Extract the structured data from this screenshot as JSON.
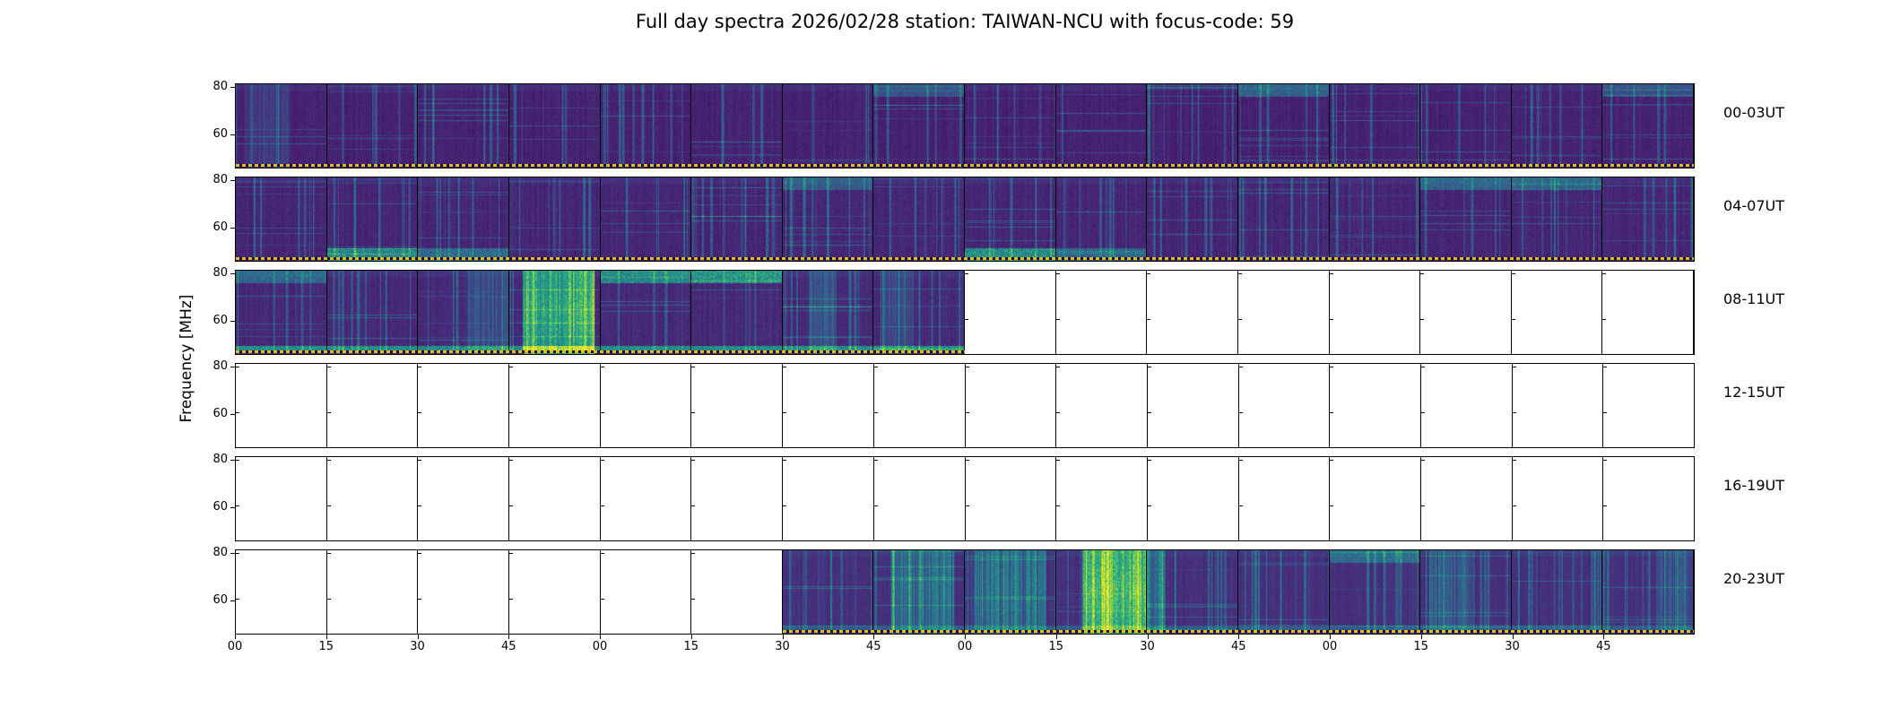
{
  "chart_data": {
    "type": "heatmap",
    "title": "Full day spectra 2026/02/28 station: TAIWAN-NCU with focus-code: 59",
    "ylabel": "Frequency [MHz]",
    "colormap": "viridis",
    "grid": "16 panels per row, 6 rows, each panel = 15 minutes of dynamic radio spectrum",
    "y_tick_labels": [
      "80",
      "60"
    ],
    "x_tick_labels": [
      "00",
      "15",
      "30",
      "45",
      "00",
      "15",
      "30",
      "45",
      "00",
      "15",
      "30",
      "45",
      "00",
      "15",
      "30",
      "45"
    ],
    "panels_per_row": 16,
    "minutes_per_panel": 15,
    "colors": {
      "spectrogram_dark": "#440154",
      "spectrogram_mid": "#21918c",
      "spectrogram_bright": "#fde725",
      "time_marker": "#e8b90f",
      "frame": "#000000",
      "empty_panel": "#ffffff"
    },
    "rows": [
      {
        "label": "00-03UT",
        "filled_start": 0,
        "filled_end": 15,
        "texture": {
          "base": 0.02,
          "streak_prob": 0.05,
          "bottom_line": 0
        },
        "features": [
          {
            "panel": 0,
            "type": "burst",
            "amp": 0.18,
            "x0": 0.1,
            "x1": 0.6
          },
          {
            "panel": 7,
            "type": "top-glow",
            "amp": 0.22
          },
          {
            "panel": 11,
            "type": "top-glow",
            "amp": 0.3
          },
          {
            "panel": 15,
            "type": "top-glow",
            "amp": 0.2
          }
        ]
      },
      {
        "label": "04-07UT",
        "filled_start": 0,
        "filled_end": 15,
        "texture": {
          "base": 0.03,
          "streak_prob": 0.08,
          "bottom_line": 0
        },
        "features": [
          {
            "panel": 1,
            "type": "bottom-glow",
            "amp": 0.5
          },
          {
            "panel": 2,
            "type": "bottom-glow",
            "amp": 0.35
          },
          {
            "panel": 6,
            "type": "top-glow",
            "amp": 0.25
          },
          {
            "panel": 8,
            "type": "bottom-glow",
            "amp": 0.55
          },
          {
            "panel": 9,
            "type": "bottom-glow",
            "amp": 0.3
          },
          {
            "panel": 13,
            "type": "top-glow",
            "amp": 0.3
          },
          {
            "panel": 14,
            "type": "top-glow",
            "amp": 0.3
          }
        ]
      },
      {
        "label": "08-11UT",
        "filled_start": 0,
        "filled_end": 7,
        "texture": {
          "base": 0.04,
          "streak_prob": 0.07,
          "bottom_line": 0.5
        },
        "features": [
          {
            "panel": 0,
            "type": "top-glow",
            "amp": 0.3
          },
          {
            "panel": 2,
            "type": "burst",
            "amp": 0.3,
            "x0": 0.55,
            "x1": 1.0
          },
          {
            "panel": 3,
            "type": "strong-burst",
            "amp": 0.8,
            "x0": 0.15,
            "x1": 0.95
          },
          {
            "panel": 4,
            "type": "top-glow",
            "amp": 0.5
          },
          {
            "panel": 5,
            "type": "top-glow",
            "amp": 0.55
          },
          {
            "panel": 6,
            "type": "burst",
            "amp": 0.3,
            "x0": 0.3,
            "x1": 0.6
          },
          {
            "panel": 7,
            "type": "burst",
            "amp": 0.25,
            "x0": 0.1,
            "x1": 0.45
          }
        ]
      },
      {
        "label": "12-15UT",
        "filled_start": -1,
        "filled_end": -1,
        "texture": null,
        "features": []
      },
      {
        "label": "16-19UT",
        "filled_start": -1,
        "filled_end": -1,
        "texture": null,
        "features": []
      },
      {
        "label": "20-23UT",
        "filled_start": 6,
        "filled_end": 15,
        "texture": {
          "base": 0.06,
          "streak_prob": 0.12,
          "bottom_line": 0.2
        },
        "features": [
          {
            "panel": 7,
            "type": "burst",
            "amp": 0.5,
            "x0": 0.2,
            "x1": 0.9
          },
          {
            "panel": 8,
            "type": "burst",
            "amp": 0.45,
            "x0": 0.1,
            "x1": 0.9
          },
          {
            "panel": 9,
            "type": "strong-burst",
            "amp": 0.95,
            "x0": 0.3,
            "x1": 1.0
          },
          {
            "panel": 10,
            "type": "burst",
            "amp": 0.5,
            "x0": 0.0,
            "x1": 0.2
          },
          {
            "panel": 12,
            "type": "top-glow",
            "amp": 0.3
          },
          {
            "panel": 13,
            "type": "burst",
            "amp": 0.35,
            "x0": 0.1,
            "x1": 0.6
          },
          {
            "panel": 15,
            "type": "burst",
            "amp": 0.25,
            "x0": 0.6,
            "x1": 1.0
          }
        ]
      }
    ]
  }
}
